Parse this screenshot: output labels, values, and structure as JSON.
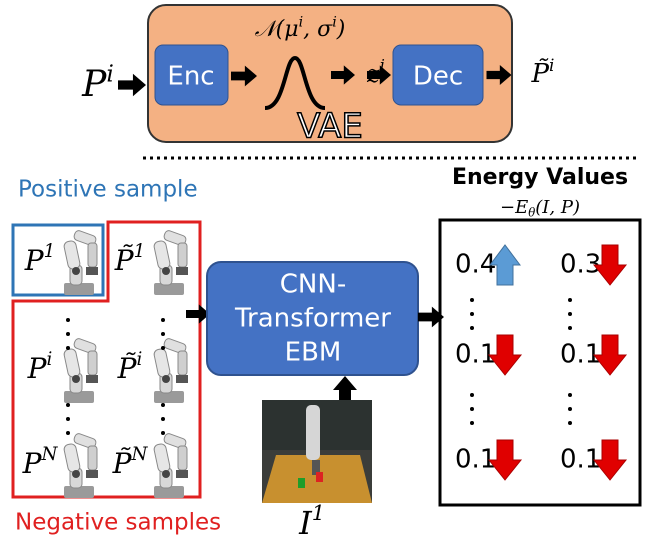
{
  "vae": {
    "input": [
      {
        "t": "P",
        "sup": "i"
      }
    ],
    "encoder": "Enc",
    "distribution": [
      {
        "t": "𝒩("
      },
      {
        "t": "μ",
        "sup": "i"
      },
      {
        "t": ", "
      },
      {
        "t": "σ",
        "sup": "i"
      },
      {
        "t": ")"
      }
    ],
    "latent": [
      {
        "t": "z",
        "sup": "i"
      }
    ],
    "decoder": "Dec",
    "output": [
      {
        "t": "P̃",
        "sup": "i"
      }
    ],
    "label": "VAE"
  },
  "samples": {
    "positive_label": "Positive sample",
    "negative_label": "Negative samples",
    "rows": [
      [
        [
          {
            "t": "P",
            "sup": "1"
          }
        ],
        [
          {
            "t": "P̃",
            "sup": "1"
          }
        ]
      ],
      [
        [
          {
            "t": "P",
            "sup": "i"
          }
        ],
        [
          {
            "t": "P̃",
            "sup": "i"
          }
        ]
      ],
      [
        [
          {
            "t": "P",
            "sup": "N"
          }
        ],
        [
          {
            "t": "P̃",
            "sup": "N"
          }
        ]
      ]
    ]
  },
  "model": {
    "lines": [
      "CNN-",
      "Transformer",
      "EBM"
    ],
    "image_label": [
      {
        "t": "I",
        "sup": "1"
      }
    ]
  },
  "energy": {
    "title": "Energy Values",
    "formula": [
      {
        "t": "−"
      },
      {
        "t": "E",
        "sub": "θ"
      },
      {
        "t": "(I, P)"
      }
    ],
    "values": [
      [
        0.4,
        0.3
      ],
      [
        0.1,
        0.1
      ],
      [
        0.1,
        0.1
      ]
    ],
    "arrows": [
      [
        "up",
        "down"
      ],
      [
        "down",
        "down"
      ],
      [
        "down",
        "down"
      ]
    ]
  }
}
